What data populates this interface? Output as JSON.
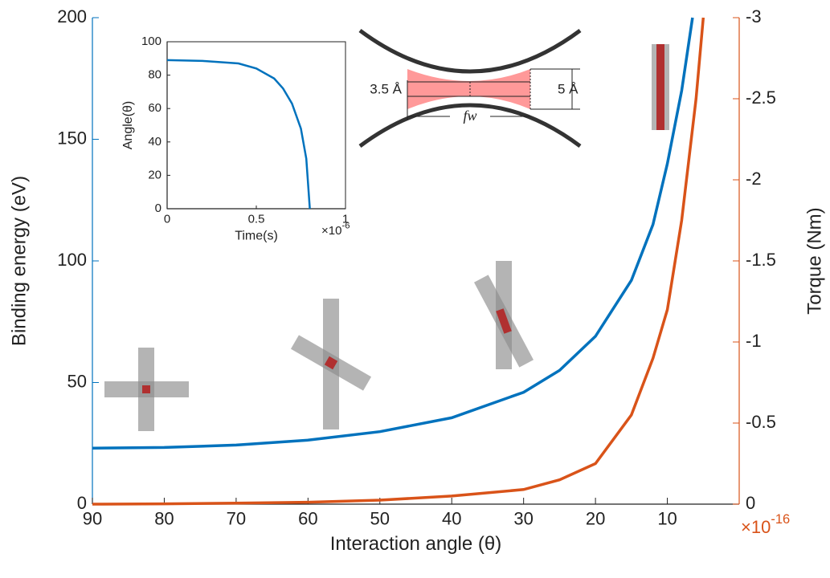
{
  "chart_data": [
    {
      "type": "line",
      "xlabel": "Interaction angle (θ)",
      "ylabel": "Binding energy (eV)",
      "y2label": "Torque (Nm)",
      "xlim": [
        90,
        0
      ],
      "xticks": [
        90,
        80,
        70,
        60,
        50,
        40,
        30,
        20,
        10
      ],
      "ylim": [
        0,
        200
      ],
      "yticks": [
        0,
        50,
        100,
        150,
        200
      ],
      "y2lim": [
        0,
        -3
      ],
      "y2ticks": [
        0,
        -0.5,
        -1,
        -1.5,
        -2,
        -2.5,
        -3
      ],
      "y2_multiplier": {
        "base": "×10",
        "exponent": "-16"
      },
      "ycolor": "#0072BD",
      "y2color": "#D95319",
      "series": [
        {
          "color": "#0072BD",
          "x": [
            90,
            80,
            70,
            60,
            50,
            40,
            30,
            25,
            20,
            15,
            12,
            10,
            8,
            6.5
          ],
          "values": [
            23,
            23.3,
            24.3,
            26.3,
            29.8,
            35.5,
            46,
            55,
            69,
            92,
            115,
            140,
            170,
            200
          ]
        },
        {
          "color": "#D95319",
          "axis": "y2",
          "x": [
            90,
            80,
            70,
            60,
            50,
            40,
            30,
            25,
            20,
            15,
            12,
            10,
            8,
            6,
            5
          ],
          "values": [
            0,
            -0.002,
            -0.006,
            -0.012,
            -0.025,
            -0.05,
            -0.09,
            -0.15,
            -0.25,
            -0.55,
            -0.9,
            -1.2,
            -1.75,
            -2.5,
            -3
          ]
        }
      ]
    },
    {
      "type": "line",
      "xlabel": "Time(s)",
      "ylabel": "Angle(θ)",
      "xlim": [
        0,
        1
      ],
      "xticks": [
        0,
        0.5,
        1
      ],
      "ylim": [
        0,
        100
      ],
      "yticks": [
        0,
        20,
        40,
        60,
        80,
        100
      ],
      "x_multiplier": {
        "base": "×10",
        "exponent": "-6"
      },
      "series": [
        {
          "color": "#0072BD",
          "x": [
            0,
            0.2,
            0.4,
            0.5,
            0.6,
            0.65,
            0.7,
            0.75,
            0.78,
            0.8
          ],
          "values": [
            89,
            88.5,
            87,
            84,
            78,
            72,
            63,
            48,
            30,
            0
          ]
        }
      ]
    }
  ],
  "diagram": {
    "gap_label": "3.5 Å",
    "width_label": "5 Å",
    "fw_label": "fw"
  }
}
